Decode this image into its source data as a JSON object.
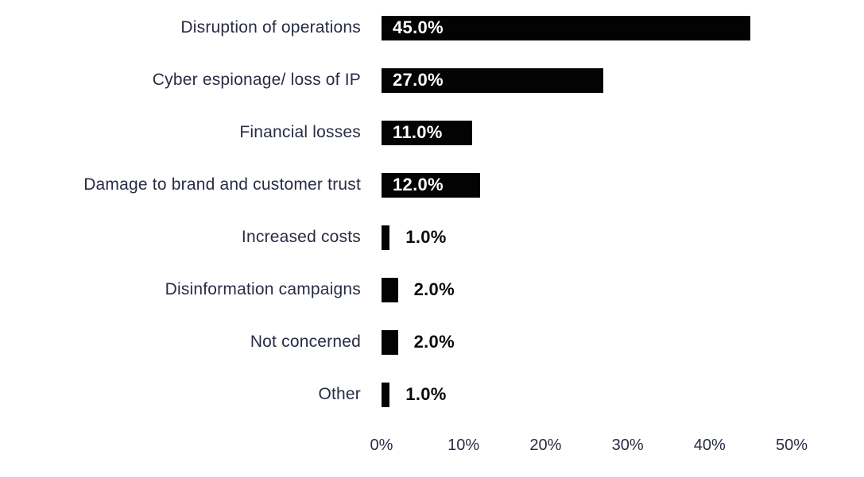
{
  "chart_data": {
    "type": "bar",
    "orientation": "horizontal",
    "title": "",
    "xlabel": "",
    "ylabel": "",
    "categories": [
      "Disruption of operations",
      "Cyber espionage/ loss of IP",
      "Financial losses",
      "Damage to brand and customer trust",
      "Increased costs",
      "Disinformation campaigns",
      "Not concerned",
      "Other"
    ],
    "values": [
      45.0,
      27.0,
      11.0,
      12.0,
      1.0,
      2.0,
      2.0,
      1.0
    ],
    "value_labels": [
      "45.0%",
      "27.0%",
      "11.0%",
      "12.0%",
      "1.0%",
      "2.0%",
      "2.0%",
      "1.0%"
    ],
    "xlim": [
      0,
      50
    ],
    "x_ticks": [
      "0%",
      "10%",
      "20%",
      "30%",
      "40%",
      "50%"
    ],
    "x_tick_values": [
      0,
      10,
      20,
      30,
      40,
      50
    ],
    "grid": false,
    "legend": false,
    "inside_label_threshold": 10,
    "colors": {
      "bar": "#030303",
      "category_text": "#282c44",
      "axis_text": "#282c44",
      "value_inside": "#ffffff",
      "value_outside": "#0a0a0a",
      "background": "#ffffff"
    }
  }
}
